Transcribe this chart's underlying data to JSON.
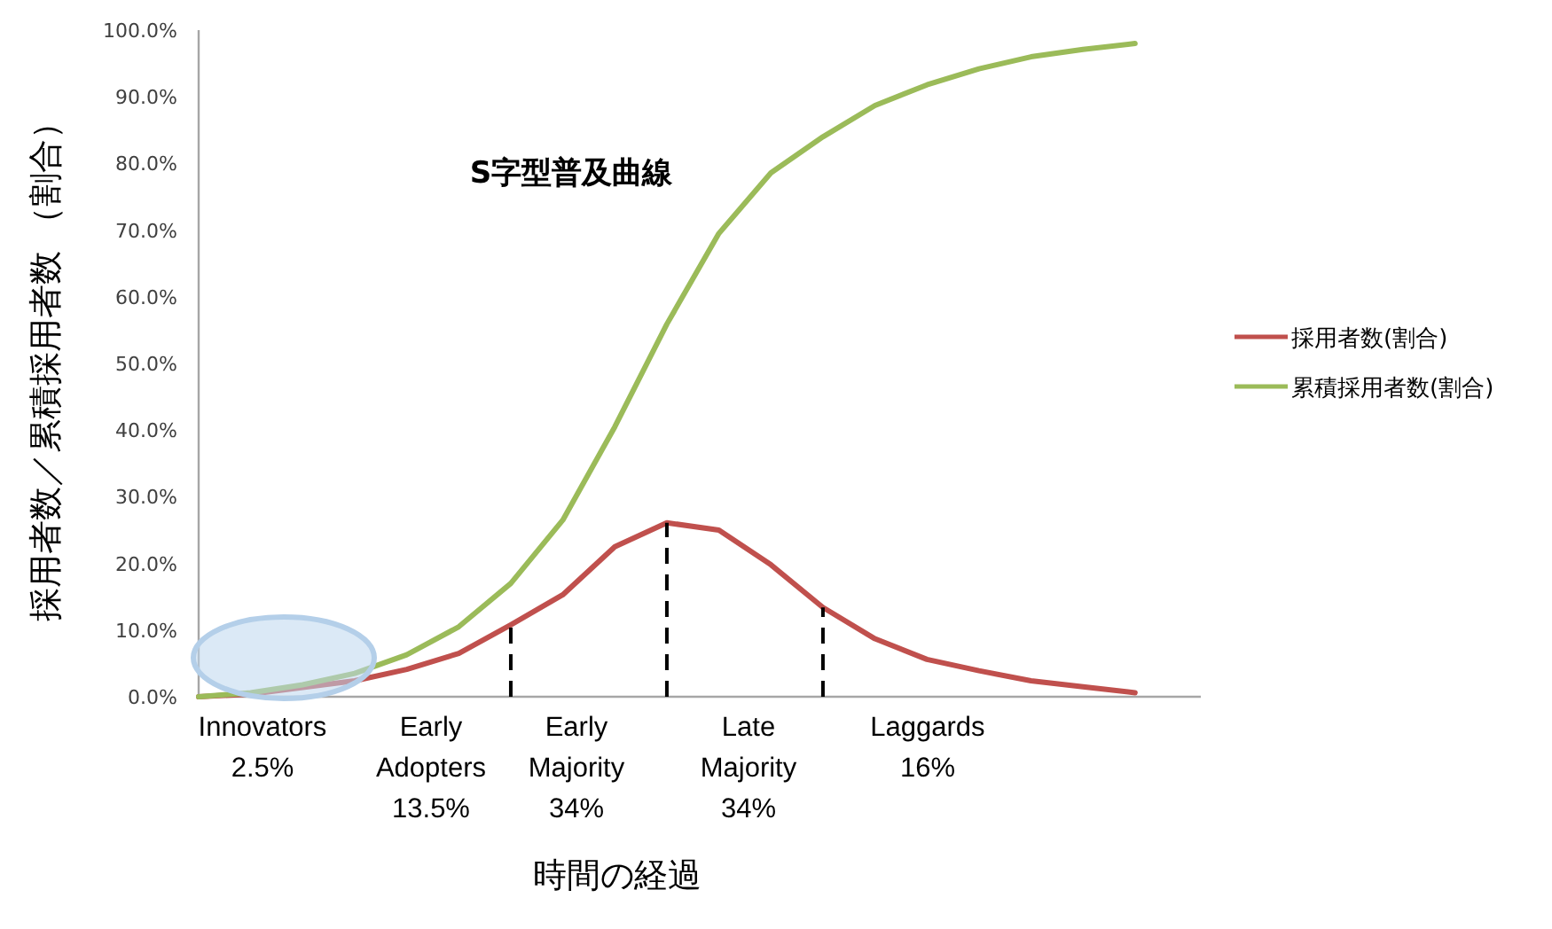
{
  "chart_data": {
    "type": "line",
    "title": "S字型普及曲線",
    "xlabel": "時間の経過",
    "ylabel": "採用者数／累積採用者数 （割合）",
    "categories": [
      null,
      null,
      null,
      null,
      null,
      null,
      null,
      null,
      null,
      null,
      null,
      null,
      null,
      null,
      null,
      null,
      null,
      null,
      null
    ],
    "ylim": [
      0,
      100
    ],
    "yticks": [
      {
        "value": 0,
        "label": "0.0%"
      },
      {
        "value": 10,
        "label": "10.0%"
      },
      {
        "value": 20,
        "label": "20.0%"
      },
      {
        "value": 30,
        "label": "30.0%"
      },
      {
        "value": 40,
        "label": "40.0%"
      },
      {
        "value": 50,
        "label": "50.0%"
      },
      {
        "value": 60,
        "label": "60.0%"
      },
      {
        "value": 70,
        "label": "70.0%"
      },
      {
        "value": 80,
        "label": "80.0%"
      },
      {
        "value": 90,
        "label": "90.0%"
      },
      {
        "value": 100,
        "label": "100.0%"
      }
    ],
    "series": [
      {
        "name": "採用者数(割合)",
        "color": "#c0504d",
        "values": [
          0,
          0.4,
          1.4,
          2.4,
          4.1,
          6.5,
          10.8,
          15.3,
          22.5,
          26.1,
          25.0,
          19.8,
          13.4,
          8.7,
          5.6,
          3.9,
          2.4,
          1.5,
          0.6
        ]
      },
      {
        "name": "累積採用者数(割合)",
        "color": "#9bbb59",
        "values": [
          0,
          0.6,
          1.8,
          3.5,
          6.3,
          10.5,
          17.0,
          26.5,
          40.5,
          55.9,
          69.5,
          78.6,
          84.0,
          88.7,
          91.8,
          94.2,
          96.0,
          97.1,
          98.0
        ]
      }
    ],
    "annotations": [
      "Innovators\n2.5%",
      "Early\nAdopters\n13.5%",
      "Early\nMajority\n34%",
      "Late\nMajority\n34%",
      "Laggards\n16%"
    ],
    "grid": false,
    "legend": "right",
    "marker": "none",
    "line_style": "solid"
  }
}
